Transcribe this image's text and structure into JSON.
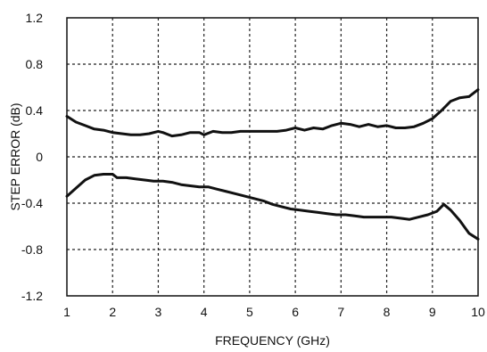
{
  "chart_data": {
    "type": "line",
    "title": "",
    "xlabel": "FREQUENCY (GHz)",
    "ylabel": "STEP ERROR (dB)",
    "xlim": [
      1,
      10
    ],
    "ylim": [
      -1.2,
      1.2
    ],
    "xticks": [
      1,
      2,
      3,
      4,
      5,
      6,
      7,
      8,
      9,
      10
    ],
    "yticks": [
      1.2,
      0.8,
      0.4,
      0,
      -0.4,
      -0.8,
      -1.2
    ],
    "ytick_labels": [
      "1.2",
      "0.8",
      "0.4",
      "0",
      "-0.4",
      "-0.8",
      "-1.2"
    ],
    "grid": "dotted",
    "colors": {
      "line": "#111111",
      "grid": "#222222",
      "frame": "#111111"
    },
    "series": [
      {
        "x": [
          1.0,
          1.2,
          1.4,
          1.6,
          1.8,
          2.0,
          2.2,
          2.4,
          2.6,
          2.8,
          3.0,
          3.1,
          3.3,
          3.5,
          3.7,
          3.9,
          4.0,
          4.2,
          4.4,
          4.6,
          4.8,
          5.0,
          5.2,
          5.4,
          5.6,
          5.8,
          6.0,
          6.2,
          6.4,
          6.6,
          6.8,
          7.0,
          7.2,
          7.4,
          7.6,
          7.8,
          8.0,
          8.2,
          8.4,
          8.6,
          8.8,
          9.0,
          9.2,
          9.4,
          9.6,
          9.8,
          10.0
        ],
        "y": [
          0.35,
          0.3,
          0.27,
          0.24,
          0.23,
          0.21,
          0.2,
          0.19,
          0.19,
          0.2,
          0.22,
          0.21,
          0.18,
          0.19,
          0.21,
          0.21,
          0.19,
          0.22,
          0.21,
          0.21,
          0.22,
          0.22,
          0.22,
          0.22,
          0.22,
          0.23,
          0.25,
          0.23,
          0.25,
          0.24,
          0.27,
          0.29,
          0.28,
          0.26,
          0.28,
          0.26,
          0.27,
          0.25,
          0.25,
          0.26,
          0.29,
          0.33,
          0.4,
          0.48,
          0.51,
          0.52,
          0.58
        ]
      },
      {
        "x": [
          1.0,
          1.2,
          1.4,
          1.6,
          1.8,
          2.0,
          2.1,
          2.3,
          2.5,
          2.7,
          2.9,
          3.1,
          3.3,
          3.5,
          3.7,
          3.9,
          4.1,
          4.3,
          4.5,
          4.7,
          4.9,
          5.1,
          5.3,
          5.5,
          5.7,
          5.9,
          6.1,
          6.3,
          6.5,
          6.7,
          6.9,
          7.1,
          7.3,
          7.5,
          7.7,
          7.9,
          8.1,
          8.3,
          8.5,
          8.7,
          8.9,
          9.1,
          9.25,
          9.4,
          9.6,
          9.8,
          10.0
        ],
        "y": [
          -0.34,
          -0.27,
          -0.2,
          -0.16,
          -0.15,
          -0.15,
          -0.18,
          -0.18,
          -0.19,
          -0.2,
          -0.21,
          -0.21,
          -0.22,
          -0.24,
          -0.25,
          -0.26,
          -0.26,
          -0.28,
          -0.3,
          -0.32,
          -0.34,
          -0.36,
          -0.38,
          -0.41,
          -0.43,
          -0.45,
          -0.46,
          -0.47,
          -0.48,
          -0.49,
          -0.5,
          -0.5,
          -0.51,
          -0.52,
          -0.52,
          -0.52,
          -0.52,
          -0.53,
          -0.54,
          -0.52,
          -0.5,
          -0.47,
          -0.41,
          -0.46,
          -0.55,
          -0.66,
          -0.71
        ]
      }
    ]
  }
}
